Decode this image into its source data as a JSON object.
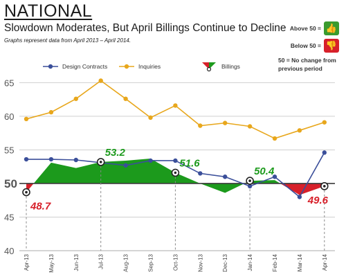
{
  "header": {
    "title": "NATIONAL",
    "subtitle": "Slowdown Moderates, But April Billings Continue to Decline",
    "note": "Graphs represent data from April 2013 – April 2014."
  },
  "key": {
    "above_label": "Above 50 =",
    "below_label": "Below 50 =",
    "zero_label": "50 = No change from previous period",
    "above_color": "#3a9b2e",
    "below_color": "#d7202a",
    "above_icon": "thumbs-up-icon",
    "below_icon": "thumbs-down-icon"
  },
  "chart_data": {
    "type": "line",
    "x": [
      "Apr-13",
      "May-13",
      "Jun-13",
      "Jul-13",
      "Aug-13",
      "Sep-13",
      "Oct-13",
      "Nov-13",
      "Dec-13",
      "Jan-14",
      "Feb-14",
      "Mar-14",
      "Apr-14"
    ],
    "ylim": [
      40,
      67
    ],
    "yticks": [
      40,
      45,
      50,
      55,
      60,
      65
    ],
    "baseline": 50,
    "grid": true,
    "legend_position": "top",
    "series": [
      {
        "name": "Design Contracts",
        "style": "line-marker",
        "color": "#3b4f9a",
        "values": [
          53.6,
          53.6,
          53.5,
          53.1,
          52.7,
          53.4,
          53.4,
          51.5,
          51.0,
          49.6,
          51.0,
          48.0,
          54.6
        ]
      },
      {
        "name": "Inquiries",
        "style": "line-marker",
        "color": "#e8a71c",
        "values": [
          59.6,
          60.6,
          62.6,
          65.3,
          62.6,
          59.8,
          61.6,
          58.6,
          59.0,
          58.5,
          56.7,
          57.9,
          59.1
        ]
      },
      {
        "name": "Billings",
        "style": "area-baseline",
        "color_above": "#1c9a1c",
        "color_below": "#d7202a",
        "values": [
          48.7,
          53.1,
          52.3,
          53.2,
          53.4,
          53.7,
          51.6,
          50.0,
          48.6,
          50.4,
          50.5,
          48.3,
          49.6
        ]
      }
    ],
    "labels": [
      {
        "index": 0,
        "text": "48.7",
        "color": "#d7202a"
      },
      {
        "index": 3,
        "text": "53.2",
        "color": "#1c9a1c"
      },
      {
        "index": 6,
        "text": "51.6",
        "color": "#1c9a1c"
      },
      {
        "index": 9,
        "text": "50.4",
        "color": "#1c9a1c"
      },
      {
        "index": 12,
        "text": "49.6",
        "color": "#d7202a"
      }
    ]
  }
}
